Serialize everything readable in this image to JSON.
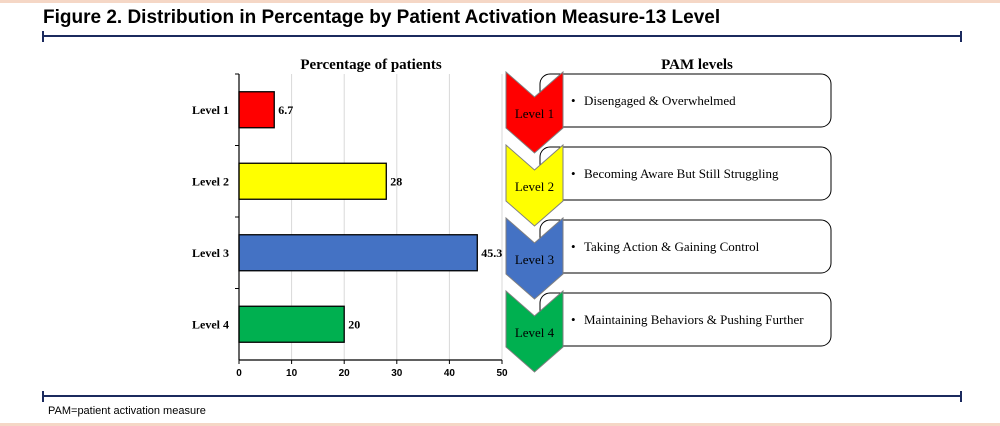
{
  "figure": {
    "title": "Figure 2. Distribution in Percentage by Patient Activation Measure-13 Level",
    "footnote": "PAM=patient activation measure"
  },
  "chart_data": {
    "type": "bar",
    "orientation": "horizontal",
    "title": "Percentage of patients",
    "categories": [
      "Level 1",
      "Level 2",
      "Level 3",
      "Level 4"
    ],
    "values": [
      6.7,
      28,
      45.3,
      20
    ],
    "value_labels": [
      "6.7",
      "28",
      "45.3",
      "20"
    ],
    "colors": [
      "#ff0000",
      "#ffff00",
      "#4472c4",
      "#00b050"
    ],
    "xlim": [
      0,
      50
    ],
    "x_ticks": [
      "0",
      "10",
      "20",
      "30",
      "40",
      "50"
    ],
    "grid": true,
    "legend": "none"
  },
  "pam_panel": {
    "title": "PAM levels",
    "levels": [
      {
        "label": "Level 1",
        "description": "Disengaged & Overwhelmed",
        "color": "#ff0000"
      },
      {
        "label": "Level 2",
        "description": "Becoming Aware But Still Struggling",
        "color": "#ffff00"
      },
      {
        "label": "Level 3",
        "description": "Taking Action & Gaining Control",
        "color": "#4472c4"
      },
      {
        "label": "Level 4",
        "description": "Maintaining Behaviors & Pushing Further",
        "color": "#00b050"
      }
    ],
    "bullet": "•"
  }
}
